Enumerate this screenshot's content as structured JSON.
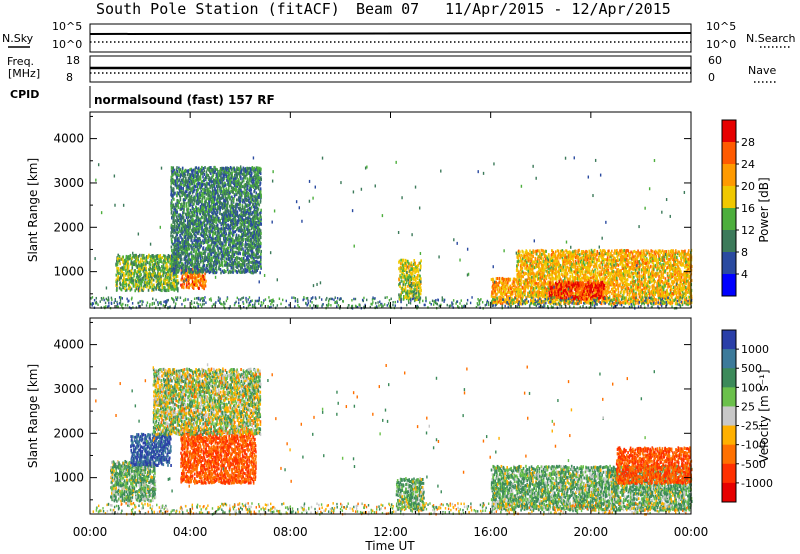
{
  "header": {
    "station": "South Pole Station (fitACF)",
    "beam": "Beam 07",
    "dates": "11/Apr/2015 - 12/Apr/2015"
  },
  "side_labels": {
    "nsky": "N.Sky",
    "freq_line1": "Freq.",
    "freq_line2": "[MHz]",
    "cpid": "CPID",
    "nsearch": "N.Search",
    "nave": "Nave"
  },
  "mini_panels": {
    "noise_left_ticks": [
      "10^5",
      "10^0"
    ],
    "noise_right_ticks": [
      "10^5",
      "10^0"
    ],
    "freq_left_ticks": [
      "18",
      "8"
    ],
    "freq_right_ticks": [
      "60",
      "0"
    ]
  },
  "cpid_text": "normalsound (fast) 157 RF",
  "xaxis": {
    "label": "Time UT",
    "ticks": [
      "00:00",
      "04:00",
      "08:00",
      "12:00",
      "16:00",
      "20:00",
      "00:00"
    ]
  },
  "colorbars": {
    "power": {
      "label": "Power [dB]",
      "ticks": [
        "28",
        "24",
        "20",
        "16",
        "12",
        "8",
        "4"
      ],
      "colors": [
        "#e60000",
        "#ff5a00",
        "#ff9a00",
        "#f0c800",
        "#4cae3c",
        "#3c7a5a",
        "#2a4aa0",
        "#0000ff"
      ]
    },
    "velocity": {
      "label": "Velocity [m s⁻¹]",
      "ticks": [
        "1000",
        "500",
        "100",
        "25",
        "-25",
        "-100",
        "-500",
        "-1000"
      ],
      "colors": [
        "#2a3fa8",
        "#3c7a9a",
        "#3c8a5a",
        "#6bc04b",
        "#c8c8c8",
        "#ffb000",
        "#ff7000",
        "#ff3000",
        "#e60000"
      ]
    }
  },
  "chart_data": [
    {
      "type": "heatmap",
      "title": "",
      "xlabel": "Time UT",
      "ylabel": "Slant Range [km]",
      "xlim": [
        "00:00",
        "00:00"
      ],
      "ylim": [
        180,
        4600
      ],
      "yticks": [
        1000,
        2000,
        3000,
        4000
      ],
      "colorbar": "Power [dB]",
      "scatter_regions": [
        {
          "t0": 1.0,
          "t1": 3.5,
          "r0": 600,
          "r1": 1400,
          "value": 14
        },
        {
          "t0": 3.6,
          "t1": 4.6,
          "r0": 650,
          "r1": 1100,
          "value": 24
        },
        {
          "t0": 3.2,
          "t1": 6.8,
          "r0": 1000,
          "r1": 3400,
          "value": 10
        },
        {
          "t0": 12.3,
          "t1": 13.2,
          "r0": 400,
          "r1": 1300,
          "value": 16
        },
        {
          "t0": 16.0,
          "t1": 17.0,
          "r0": 300,
          "r1": 900,
          "value": 22
        },
        {
          "t0": 17.0,
          "t1": 24.0,
          "r0": 300,
          "r1": 1500,
          "value": 20
        },
        {
          "t0": 18.3,
          "t1": 20.5,
          "r0": 400,
          "r1": 800,
          "value": 28
        }
      ]
    },
    {
      "type": "heatmap",
      "title": "",
      "xlabel": "Time UT",
      "ylabel": "Slant Range [km]",
      "xlim": [
        "00:00",
        "00:00"
      ],
      "ylim": [
        180,
        4600
      ],
      "yticks": [
        1000,
        2000,
        3000,
        4000
      ],
      "colorbar": "Velocity [m s-1]",
      "scatter_regions": [
        {
          "t0": 0.8,
          "t1": 2.6,
          "r0": 500,
          "r1": 1400,
          "value": 100
        },
        {
          "t0": 1.6,
          "t1": 3.2,
          "r0": 1300,
          "r1": 2000,
          "value": 1000
        },
        {
          "t0": 3.6,
          "t1": 6.6,
          "r0": 900,
          "r1": 2100,
          "value": -500
        },
        {
          "t0": 2.5,
          "t1": 6.8,
          "r0": 2000,
          "r1": 3500,
          "value": 25
        },
        {
          "t0": 12.2,
          "t1": 13.3,
          "r0": 300,
          "r1": 1000,
          "value": 100
        },
        {
          "t0": 16.0,
          "t1": 24.0,
          "r0": 300,
          "r1": 1300,
          "value": 100
        },
        {
          "t0": 21.0,
          "t1": 24.0,
          "r0": 900,
          "r1": 1700,
          "value": -500
        }
      ]
    }
  ]
}
